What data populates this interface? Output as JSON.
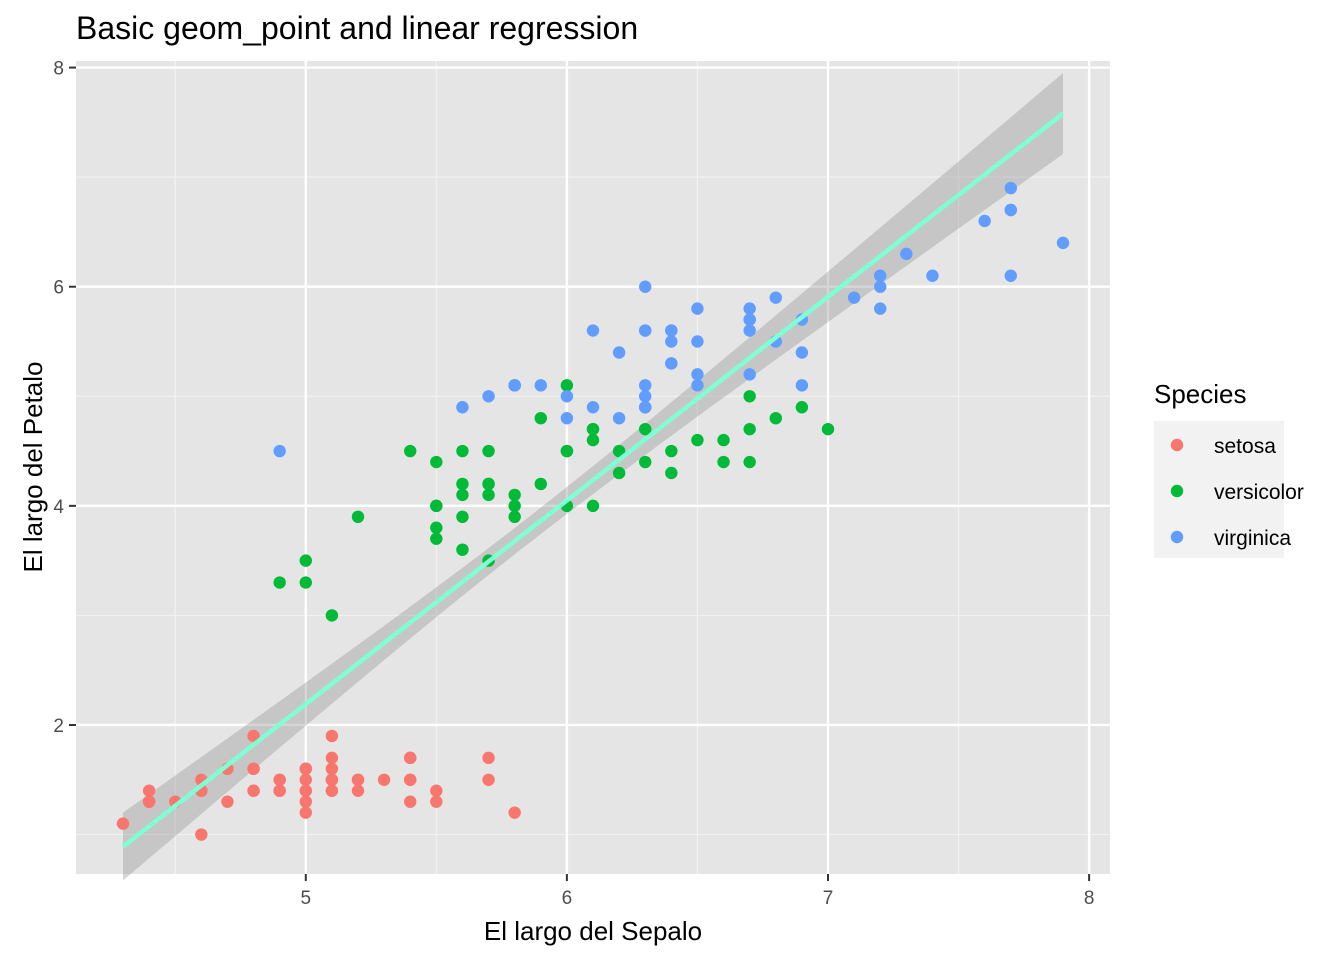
{
  "chart_data": {
    "type": "scatter",
    "title": "Basic geom_point and linear regression",
    "xlabel": "El largo del Sepalo",
    "ylabel": "El largo del Petalo",
    "xlim": [
      4.12,
      8.08
    ],
    "ylim": [
      0.64,
      8.06
    ],
    "x_ticks": [
      5,
      6,
      7,
      8
    ],
    "y_ticks": [
      2,
      4,
      6,
      8
    ],
    "grid": true,
    "legend": {
      "title": "Species",
      "position": "right"
    },
    "panel_color": "#e5e5e5",
    "series": [
      {
        "name": "setosa",
        "color": "#f8766d",
        "points": [
          [
            5.1,
            1.4
          ],
          [
            4.9,
            1.4
          ],
          [
            4.7,
            1.3
          ],
          [
            4.6,
            1.5
          ],
          [
            5.0,
            1.4
          ],
          [
            5.4,
            1.7
          ],
          [
            4.6,
            1.4
          ],
          [
            5.0,
            1.5
          ],
          [
            4.4,
            1.4
          ],
          [
            4.9,
            1.5
          ],
          [
            5.4,
            1.5
          ],
          [
            4.8,
            1.6
          ],
          [
            4.8,
            1.4
          ],
          [
            4.3,
            1.1
          ],
          [
            5.8,
            1.2
          ],
          [
            5.7,
            1.5
          ],
          [
            5.4,
            1.3
          ],
          [
            5.1,
            1.4
          ],
          [
            5.7,
            1.7
          ],
          [
            5.1,
            1.5
          ],
          [
            5.4,
            1.7
          ],
          [
            5.1,
            1.5
          ],
          [
            4.6,
            1.0
          ],
          [
            5.1,
            1.7
          ],
          [
            4.8,
            1.9
          ],
          [
            5.0,
            1.6
          ],
          [
            5.0,
            1.6
          ],
          [
            5.2,
            1.5
          ],
          [
            5.2,
            1.4
          ],
          [
            4.7,
            1.6
          ],
          [
            4.8,
            1.6
          ],
          [
            5.4,
            1.5
          ],
          [
            5.2,
            1.5
          ],
          [
            5.5,
            1.4
          ],
          [
            4.9,
            1.5
          ],
          [
            5.0,
            1.2
          ],
          [
            5.5,
            1.3
          ],
          [
            4.9,
            1.4
          ],
          [
            4.4,
            1.3
          ],
          [
            5.1,
            1.5
          ],
          [
            5.0,
            1.3
          ],
          [
            4.5,
            1.3
          ],
          [
            4.4,
            1.3
          ],
          [
            5.0,
            1.6
          ],
          [
            5.1,
            1.9
          ],
          [
            4.8,
            1.4
          ],
          [
            5.1,
            1.6
          ],
          [
            4.6,
            1.4
          ],
          [
            5.3,
            1.5
          ],
          [
            5.0,
            1.4
          ]
        ]
      },
      {
        "name": "versicolor",
        "color": "#00ba38",
        "points": [
          [
            7.0,
            4.7
          ],
          [
            6.4,
            4.5
          ],
          [
            6.9,
            4.9
          ],
          [
            5.5,
            4.0
          ],
          [
            6.5,
            4.6
          ],
          [
            5.7,
            4.5
          ],
          [
            6.3,
            4.7
          ],
          [
            4.9,
            3.3
          ],
          [
            6.6,
            4.6
          ],
          [
            5.2,
            3.9
          ],
          [
            5.0,
            3.5
          ],
          [
            5.9,
            4.2
          ],
          [
            6.0,
            4.0
          ],
          [
            6.1,
            4.7
          ],
          [
            5.6,
            3.6
          ],
          [
            6.7,
            4.4
          ],
          [
            5.6,
            4.5
          ],
          [
            5.8,
            4.1
          ],
          [
            6.2,
            4.5
          ],
          [
            5.6,
            3.9
          ],
          [
            5.9,
            4.8
          ],
          [
            6.1,
            4.0
          ],
          [
            6.3,
            4.9
          ],
          [
            6.1,
            4.7
          ],
          [
            6.4,
            4.3
          ],
          [
            6.6,
            4.4
          ],
          [
            6.8,
            4.8
          ],
          [
            6.7,
            5.0
          ],
          [
            6.0,
            4.5
          ],
          [
            5.7,
            3.5
          ],
          [
            5.5,
            3.8
          ],
          [
            5.5,
            3.7
          ],
          [
            5.8,
            3.9
          ],
          [
            6.0,
            5.1
          ],
          [
            5.4,
            4.5
          ],
          [
            6.0,
            4.5
          ],
          [
            6.7,
            4.7
          ],
          [
            6.3,
            4.4
          ],
          [
            5.6,
            4.1
          ],
          [
            5.5,
            4.0
          ],
          [
            5.5,
            4.4
          ],
          [
            6.1,
            4.6
          ],
          [
            5.8,
            4.0
          ],
          [
            5.0,
            3.3
          ],
          [
            5.6,
            4.2
          ],
          [
            5.7,
            4.2
          ],
          [
            5.7,
            4.2
          ],
          [
            6.2,
            4.3
          ],
          [
            5.1,
            3.0
          ],
          [
            5.7,
            4.1
          ]
        ]
      },
      {
        "name": "virginica",
        "color": "#619cff",
        "points": [
          [
            6.3,
            6.0
          ],
          [
            5.8,
            5.1
          ],
          [
            7.1,
            5.9
          ],
          [
            6.3,
            5.6
          ],
          [
            6.5,
            5.8
          ],
          [
            7.6,
            6.6
          ],
          [
            4.9,
            4.5
          ],
          [
            7.3,
            6.3
          ],
          [
            6.7,
            5.8
          ],
          [
            7.2,
            6.1
          ],
          [
            6.5,
            5.1
          ],
          [
            6.4,
            5.3
          ],
          [
            6.8,
            5.5
          ],
          [
            5.7,
            5.0
          ],
          [
            5.8,
            5.1
          ],
          [
            6.4,
            5.3
          ],
          [
            6.5,
            5.5
          ],
          [
            7.7,
            6.7
          ],
          [
            7.7,
            6.9
          ],
          [
            6.0,
            5.0
          ],
          [
            6.9,
            5.7
          ],
          [
            5.6,
            4.9
          ],
          [
            7.7,
            6.7
          ],
          [
            6.3,
            4.9
          ],
          [
            6.7,
            5.7
          ],
          [
            7.2,
            6.0
          ],
          [
            6.2,
            4.8
          ],
          [
            6.1,
            4.9
          ],
          [
            6.4,
            5.6
          ],
          [
            7.2,
            5.8
          ],
          [
            7.4,
            6.1
          ],
          [
            7.9,
            6.4
          ],
          [
            6.4,
            5.6
          ],
          [
            6.3,
            5.1
          ],
          [
            6.1,
            5.6
          ],
          [
            7.7,
            6.1
          ],
          [
            6.3,
            5.6
          ],
          [
            6.4,
            5.5
          ],
          [
            6.0,
            4.8
          ],
          [
            6.9,
            5.4
          ],
          [
            6.7,
            5.6
          ],
          [
            6.9,
            5.1
          ],
          [
            5.8,
            5.1
          ],
          [
            6.8,
            5.9
          ],
          [
            6.7,
            5.7
          ],
          [
            6.7,
            5.2
          ],
          [
            6.3,
            5.0
          ],
          [
            6.5,
            5.2
          ],
          [
            6.2,
            5.4
          ],
          [
            5.9,
            5.1
          ]
        ]
      }
    ],
    "regression": {
      "color": "#7fffd4",
      "band_color": "#999999",
      "x_range": [
        4.3,
        7.9
      ],
      "intercept": -7.101,
      "slope": 1.8584,
      "se_at_ends": [
        0.31,
        0.37
      ],
      "se_at_center": 0.12,
      "x_center": 5.843
    }
  }
}
